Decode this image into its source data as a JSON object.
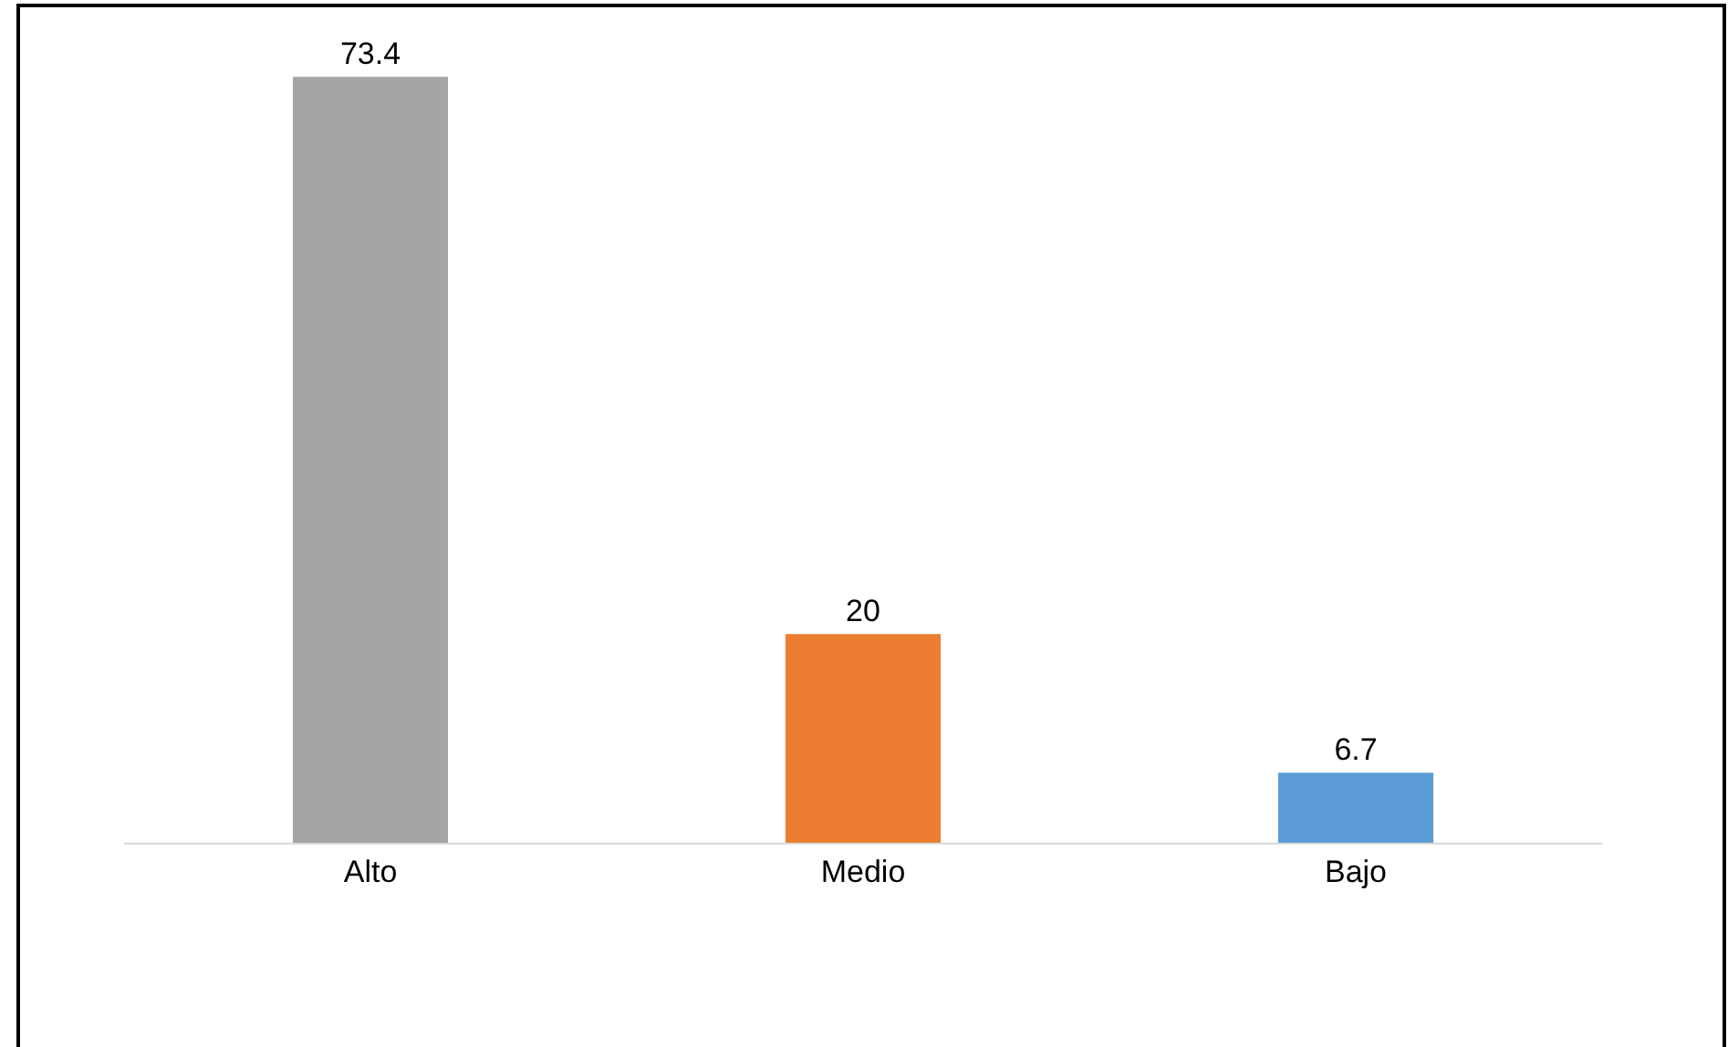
{
  "chart_data": {
    "type": "bar",
    "categories": [
      "Alto",
      "Medio",
      "Bajo"
    ],
    "values": [
      73.4,
      20,
      6.7
    ],
    "colors": [
      "#a5a5a5",
      "#ed7d31",
      "#5b9bd5"
    ],
    "data_labels": true
  }
}
